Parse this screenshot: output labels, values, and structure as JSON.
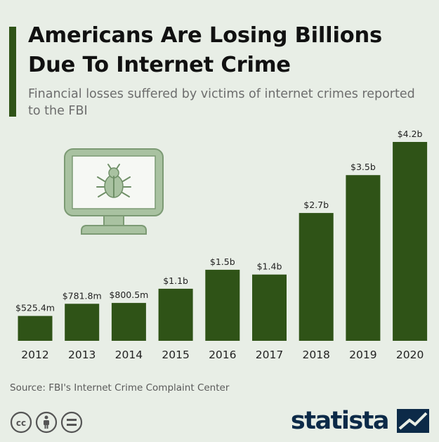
{
  "title": "Americans Are Losing Billions Due To Internet Crime",
  "subtitle": "Financial losses suffered by victims of internet crimes reported to the FBI",
  "source": "Source: FBI's Internet Crime Complaint Center",
  "brand": "statista",
  "colors": {
    "bar": "#2f5317",
    "accent": "#2f5317",
    "background": "#e8eee6",
    "illustration": "#a9c2a1",
    "brand": "#0c2a48"
  },
  "icons": [
    "computer-bug-icon",
    "creative-commons-icon",
    "attribution-icon",
    "no-derivatives-icon",
    "statista-logo-icon"
  ],
  "chart_data": {
    "type": "bar",
    "categories": [
      "2012",
      "2013",
      "2014",
      "2015",
      "2016",
      "2017",
      "2018",
      "2019",
      "2020"
    ],
    "values": [
      0.5254,
      0.7818,
      0.8005,
      1.1,
      1.5,
      1.4,
      2.7,
      3.5,
      4.2
    ],
    "labels": [
      "$525.4m",
      "$781.8m",
      "$800.5m",
      "$1.1b",
      "$1.5b",
      "$1.4b",
      "$2.7b",
      "$3.5b",
      "$4.2b"
    ],
    "unit": "USD billions",
    "title": "Americans Are Losing Billions Due To Internet Crime",
    "xlabel": "",
    "ylabel": "",
    "ylim": [
      0,
      4.2
    ],
    "grid": false,
    "legend": "none"
  }
}
